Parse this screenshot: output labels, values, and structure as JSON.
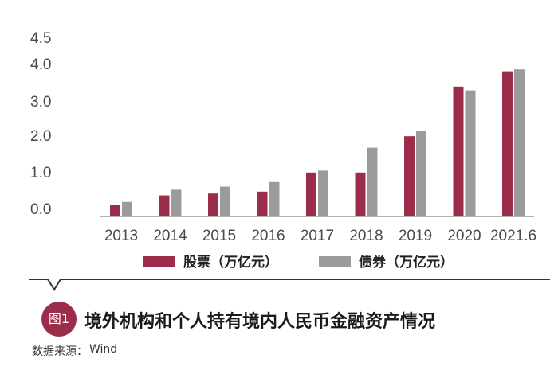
{
  "chart_data": {
    "type": "bar",
    "title": "境外机构和个人持有境内人民币金融资产情况",
    "categories": [
      "2013",
      "2014",
      "2015",
      "2016",
      "2017",
      "2018",
      "2019",
      "2020",
      "2021.6"
    ],
    "series": [
      {
        "name": "股票（万亿元）",
        "color": "#9b2d4a",
        "values": [
          0.3,
          0.55,
          0.6,
          0.65,
          1.15,
          1.15,
          2.1,
          3.4,
          3.8
        ]
      },
      {
        "name": "债券（万亿元）",
        "color": "#9b9b9b",
        "values": [
          0.38,
          0.7,
          0.78,
          0.9,
          1.2,
          1.8,
          2.25,
          3.3,
          3.85
        ]
      }
    ],
    "y_ticks": [
      "0.0",
      "1.0",
      "2.0",
      "3.0",
      "4.0",
      "4.5"
    ],
    "y_axis_baseline_label": "0.0",
    "legend_position": "bottom",
    "grid": false
  },
  "figure_badge": "图1",
  "source_prefix": "数据来源：",
  "source_name": "Wind"
}
